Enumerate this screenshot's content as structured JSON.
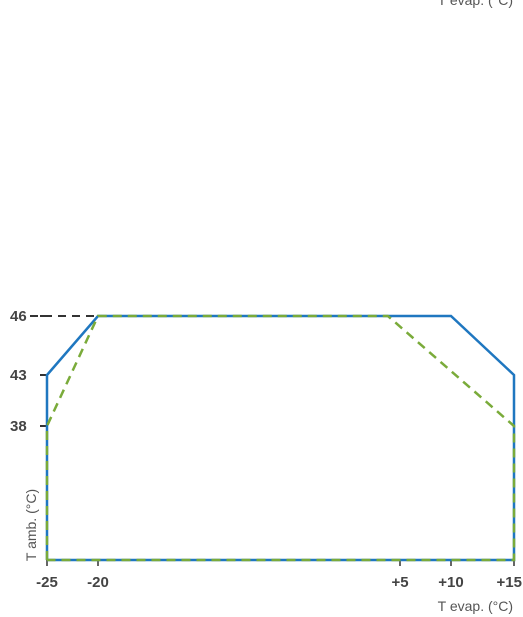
{
  "chart_data": {
    "type": "line",
    "xlabel": "T evap. (°C)",
    "ylabel": "T amb. (°C)",
    "x_ticks": [
      "-25",
      "-20",
      "+5",
      "+10",
      "+15"
    ],
    "x_tick_values": [
      -25,
      -20,
      5,
      10,
      15
    ],
    "y_ticks": [
      "46",
      "43",
      "38"
    ],
    "y_tick_values": [
      46,
      43,
      38
    ],
    "y_reference_line": 46,
    "series": [
      {
        "style": "solid",
        "color": "#1f77c0",
        "points": [
          [
            -25,
            25
          ],
          [
            -25,
            43
          ],
          [
            -20,
            46
          ],
          [
            10,
            46
          ],
          [
            15,
            43
          ],
          [
            15,
            25
          ],
          [
            -25,
            25
          ]
        ]
      },
      {
        "style": "dashed",
        "color": "#7aab3a",
        "points": [
          [
            -25,
            25
          ],
          [
            -25,
            38
          ],
          [
            -20,
            46
          ],
          [
            4,
            46
          ],
          [
            15,
            38
          ],
          [
            15,
            25
          ],
          [
            -25,
            25
          ]
        ]
      }
    ],
    "reference_line_color": "#333333"
  }
}
